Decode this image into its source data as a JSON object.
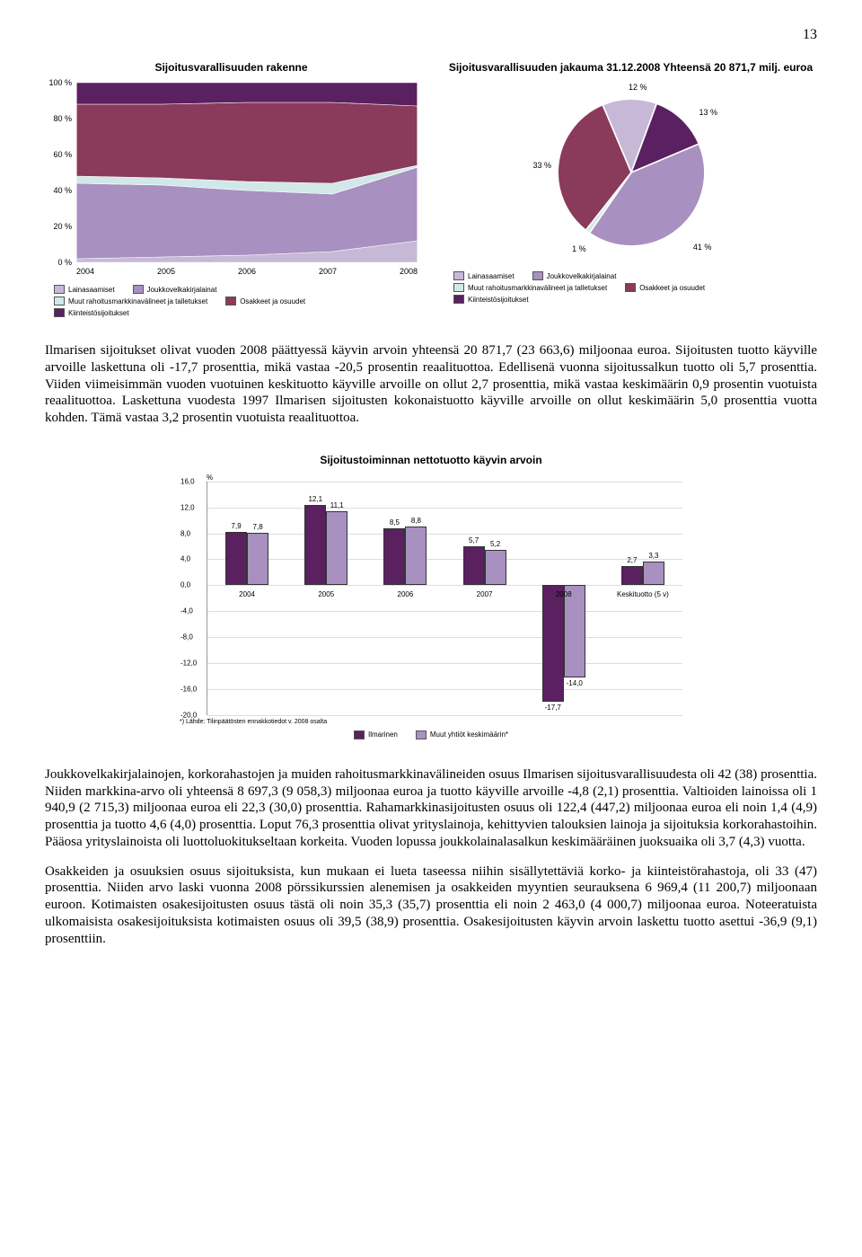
{
  "page_number": "13",
  "area_chart": {
    "title": "Sijoitusvarallisuuden rakenne",
    "y_labels": [
      "100 %",
      "80 %",
      "60 %",
      "40 %",
      "20 %",
      "0 %"
    ],
    "x_labels": [
      "2004",
      "2005",
      "2006",
      "2007",
      "2008"
    ],
    "series": [
      {
        "name": "Lainasaamiset",
        "color": "#c8b8d8",
        "values": [
          2,
          3,
          4,
          6,
          12
        ]
      },
      {
        "name": "Joukkovelkakirjalainat",
        "color": "#a890c0",
        "values": [
          42,
          40,
          36,
          32,
          41
        ]
      },
      {
        "name": "Muut rahoitusmarkkinavälineet ja talletukset",
        "color": "#d0e8e8",
        "values": [
          4,
          4,
          5,
          6,
          1
        ]
      },
      {
        "name": "Osakkeet ja osuudet",
        "color": "#8a3a5a",
        "values": [
          40,
          41,
          44,
          45,
          33
        ]
      },
      {
        "name": "Kiinteistösijoitukset",
        "color": "#5a2060",
        "values": [
          12,
          12,
          11,
          11,
          13
        ]
      }
    ],
    "legend": [
      [
        "Lainasaamiset",
        "Joukkovelkakirjalainat"
      ],
      [
        "Muut rahoitusmarkkinavälineet ja talletukset",
        "Osakkeet ja osuudet"
      ],
      [
        "Kiinteistösijoitukset"
      ]
    ],
    "legend_colors": {
      "Lainasaamiset": "#c8b8d8",
      "Joukkovelkakirjalainat": "#a890c0",
      "Muut rahoitusmarkkinavälineet ja talletukset": "#d0e8e8",
      "Osakkeet ja osuudet": "#8a3a5a",
      "Kiinteistösijoitukset": "#5a2060"
    }
  },
  "pie_chart": {
    "title": "Sijoitusvarallisuuden jakauma 31.12.2008 Yhteensä 20 871,7 milj. euroa",
    "slices": [
      {
        "label": "12 %",
        "value": 12,
        "color": "#c8b8d8"
      },
      {
        "label": "13 %",
        "value": 13,
        "color": "#5a2060"
      },
      {
        "label": "41 %",
        "value": 41,
        "color": "#a890c0"
      },
      {
        "label": "1 %",
        "value": 1,
        "color": "#d0e8e8"
      },
      {
        "label": "33 %",
        "value": 33,
        "color": "#8a3a5a"
      }
    ],
    "legend": [
      [
        "Lainasaamiset",
        "Joukkovelkakirjalainat"
      ],
      [
        "Muut rahoitusmarkkinavälineet ja talletukset",
        "Osakkeet ja osuudet"
      ],
      [
        "Kiinteistösijoitukset"
      ]
    ]
  },
  "para1": "Ilmarisen sijoitukset olivat vuoden 2008 päättyessä käyvin arvoin yhteensä 20 871,7 (23 663,6) miljoonaa euroa. Sijoitusten tuotto käyville arvoille laskettuna oli -17,7 prosenttia, mikä vastaa -20,5 prosentin reaalituottoa. Edellisenä vuonna sijoitussalkun tuotto oli 5,7 prosenttia. Viiden viimeisimmän vuoden vuotuinen keskituotto käyville arvoille on ollut 2,7 prosenttia, mikä vastaa keskimäärin 0,9 prosentin vuotuista reaalituottoa. Laskettuna vuodesta 1997 Ilmarisen sijoitusten kokonaistuotto käyville arvoille on ollut keskimäärin 5,0 prosenttia vuotta kohden. Tämä vastaa 3,2 prosentin vuotuista reaalituottoa.",
  "bar_chart": {
    "title": "Sijoitustoiminnan nettotuotto käyvin arvoin",
    "y_unit": "%",
    "y_ticks": [
      16,
      12,
      8,
      4,
      0,
      -4,
      -8,
      -12,
      -16,
      -20
    ],
    "ylim": [
      -20,
      16
    ],
    "colors": {
      "ilmarinen": "#5a2060",
      "muut": "#a890c0"
    },
    "groups": [
      {
        "label": "2004",
        "a": 7.9,
        "b": 7.8
      },
      {
        "label": "2005",
        "a": 12.1,
        "b": 11.1
      },
      {
        "label": "2006",
        "a": 8.5,
        "b": 8.8
      },
      {
        "label": "2007",
        "a": 5.7,
        "b": 5.2
      },
      {
        "label": "2008",
        "a": -17.7,
        "b": -14.0
      },
      {
        "label": "Keskituotto (5 v)",
        "a": 2.7,
        "b": 3.3
      }
    ],
    "legend": [
      "Ilmarinen",
      "Muut yhtiöt keskimäärin*"
    ],
    "note": "*) Lähde: Tilinpäätösten ennakkotiedot v. 2008 osalta"
  },
  "para2": "Joukkovelkakirjalainojen, korkorahastojen ja muiden rahoitusmarkkinavälineiden osuus Ilmarisen sijoitusvarallisuudesta oli 42 (38) prosenttia. Niiden markkina-arvo oli yhteensä 8 697,3 (9 058,3) miljoonaa euroa ja tuotto käyville arvoille -4,8 (2,1) prosenttia. Valtioiden lainoissa oli 1 940,9 (2 715,3) miljoonaa euroa eli 22,3 (30,0) prosenttia. Rahamarkkinasijoitusten osuus oli 122,4 (447,2) miljoonaa euroa eli noin 1,4 (4,9) prosenttia ja tuotto 4,6 (4,0) prosenttia. Loput 76,3 prosenttia olivat yrityslainoja, kehittyvien talouksien lainoja ja sijoituksia korkorahastoihin. Pääosa yrityslainoista oli luottoluokitukseltaan korkeita. Vuoden lopussa joukkolainalasalkun keskimääräinen juoksuaika oli 3,7 (4,3) vuotta.",
  "para3": "Osakkeiden ja osuuksien osuus sijoituksista, kun mukaan ei lueta taseessa niihin sisällytettäviä korko- ja kiinteistörahastoja, oli 33 (47) prosenttia. Niiden arvo laski vuonna 2008 pörssikurssien alenemisen ja osakkeiden myyntien seurauksena 6 969,4 (11 200,7) miljoonaan euroon. Kotimaisten osakesijoitusten osuus tästä oli noin 35,3 (35,7) prosenttia eli noin 2 463,0 (4 000,7) miljoonaa euroa. Noteeratuista ulkomaisista osakesijoituksista kotimaisten osuus oli 39,5 (38,9) prosenttia. Osakesijoitusten käyvin arvoin laskettu tuotto asettui -36,9 (9,1) prosenttiin."
}
